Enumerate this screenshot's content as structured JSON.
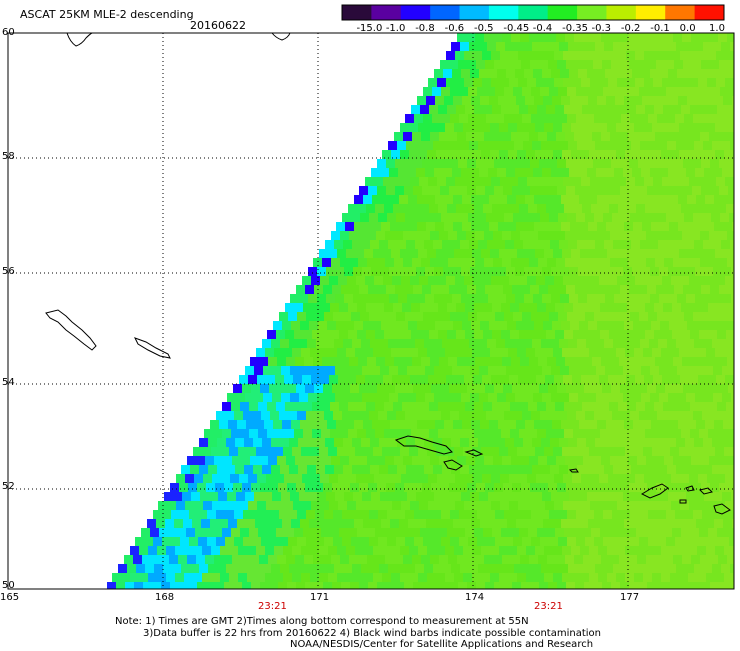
{
  "header": {
    "title": "ASCAT 25KM MLE-2 descending",
    "date": "20160622"
  },
  "colorbar": {
    "labels": [
      "-15.0",
      "-1.0",
      "-0.8",
      "-0.6",
      "-0.5",
      "-0.45",
      "-0.4",
      "-0.35",
      "-0.3",
      "-0.2",
      "-0.1",
      "0.0",
      "1.0"
    ],
    "colors": [
      "#2a0a3a",
      "#5a00a0",
      "#2200ff",
      "#0066ff",
      "#00bbff",
      "#00ffee",
      "#00ee88",
      "#22ee22",
      "#77ee22",
      "#bbee00",
      "#ffee00",
      "#ff7700",
      "#ff1100"
    ]
  },
  "axes": {
    "lon_labels": [
      "165",
      "168",
      "171",
      "174",
      "177"
    ],
    "lat_labels": [
      "60",
      "58",
      "56",
      "54",
      "52",
      "50"
    ]
  },
  "time_labels": [
    "23:21",
    "23:21"
  ],
  "notes": [
    "Note: 1) Times are GMT 2)Times along bottom correspond to measurement at 55N",
    "3)Data buffer is 22 hrs from 20160622 4) Black wind barbs indicate possible contamination",
    "NOAA/NESDIS/Center for Satellite Applications and Research"
  ],
  "colors": {
    "swath_base": "#66e61a",
    "coastline": "#000000",
    "grid": "#000000",
    "time_label": "#cc0000"
  }
}
